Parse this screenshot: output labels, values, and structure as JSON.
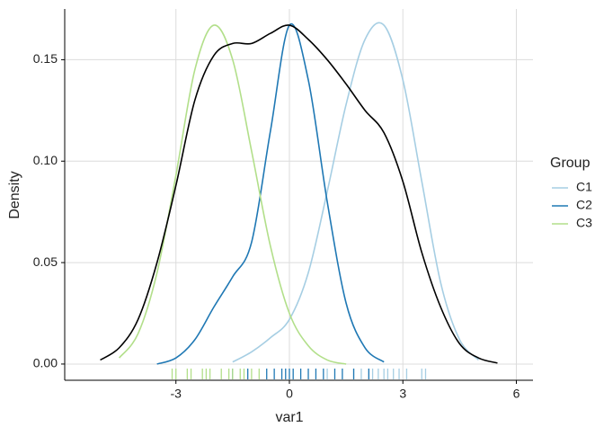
{
  "chart_data": {
    "type": "density",
    "x_label": "var1",
    "y_label": "Density",
    "legend_title": "Group",
    "legend_position": "right",
    "xlim": [
      -5.94,
      6.44
    ],
    "ylim": [
      -0.008,
      0.175
    ],
    "xticks": [
      -3,
      0,
      3,
      6
    ],
    "yticks": [
      {
        "value": 0,
        "label": "0.00"
      },
      {
        "value": 0.05,
        "label": "0.05"
      },
      {
        "value": 0.1,
        "label": "0.10"
      },
      {
        "value": 0.15,
        "label": "0.15"
      }
    ],
    "grid": true,
    "x": [
      -5.5,
      -5,
      -4.5,
      -4,
      -3.5,
      -3,
      -2.5,
      -2,
      -1.5,
      -1,
      -0.5,
      0,
      0.5,
      1,
      1.5,
      2,
      2.5,
      3,
      3.5,
      4,
      4.5,
      5,
      5.5
    ],
    "overall": {
      "color": "#000000",
      "values": [
        null,
        0.002,
        0.008,
        0.022,
        0.05,
        0.088,
        0.13,
        0.152,
        0.158,
        0.158,
        0.163,
        0.167,
        0.16,
        0.15,
        0.138,
        0.125,
        0.114,
        0.09,
        0.055,
        0.028,
        0.01,
        0.003,
        0.0005
      ]
    },
    "series": [
      {
        "name": "C1",
        "color": "#a6cee3",
        "values": [
          null,
          null,
          null,
          null,
          null,
          null,
          null,
          null,
          0.001,
          0.006,
          0.013,
          0.022,
          0.045,
          0.085,
          0.128,
          0.16,
          0.167,
          0.14,
          0.09,
          0.04,
          0.012,
          0.002,
          null
        ],
        "rug": [
          1.0,
          1.7,
          1.9,
          2.1,
          2.2,
          2.35,
          2.5,
          2.6,
          2.75,
          2.9,
          3.1,
          3.5,
          3.6
        ]
      },
      {
        "name": "C2",
        "color": "#1f78b4",
        "values": [
          null,
          null,
          null,
          null,
          0.0,
          0.003,
          0.012,
          0.028,
          0.043,
          0.06,
          0.115,
          0.167,
          0.14,
          0.08,
          0.03,
          0.008,
          0.001,
          null,
          null,
          null,
          null,
          null,
          null
        ],
        "rug": [
          -1.5,
          -1.1,
          -0.6,
          -0.4,
          -0.2,
          -0.1,
          0.0,
          0.1,
          0.3,
          0.5,
          0.7,
          0.9,
          1.2,
          1.4,
          1.7,
          2.1
        ]
      },
      {
        "name": "C3",
        "color": "#b2df8a",
        "values": [
          null,
          null,
          0.003,
          0.015,
          0.045,
          0.093,
          0.145,
          0.167,
          0.15,
          0.105,
          0.058,
          0.025,
          0.009,
          0.002,
          0.0,
          null,
          null,
          null,
          null,
          null,
          null,
          null,
          null
        ],
        "rug": [
          -3.1,
          -3.0,
          -2.7,
          -2.6,
          -2.3,
          -2.2,
          -2.1,
          -1.8,
          -1.6,
          -1.5,
          -1.3,
          -1.2,
          -1.0,
          -0.8
        ]
      }
    ]
  }
}
